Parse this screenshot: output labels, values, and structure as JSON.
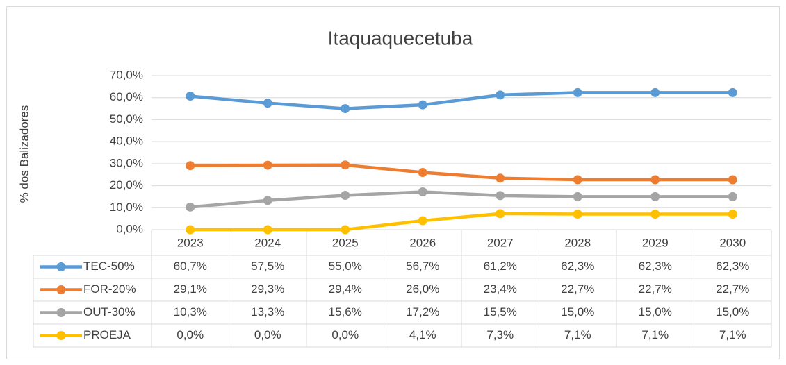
{
  "chart_data": {
    "type": "line",
    "title": "Itaquaquecetuba",
    "y_label": "% dos Balizadores",
    "categories": [
      "2023",
      "2024",
      "2025",
      "2026",
      "2027",
      "2028",
      "2029",
      "2030"
    ],
    "ylim": [
      0,
      70
    ],
    "yticks": [
      {
        "value": 0,
        "label": "0,0%"
      },
      {
        "value": 10,
        "label": "10,0%"
      },
      {
        "value": 20,
        "label": "20,0%"
      },
      {
        "value": 30,
        "label": "30,0%"
      },
      {
        "value": 40,
        "label": "40,0%"
      },
      {
        "value": 50,
        "label": "50,0%"
      },
      {
        "value": 60,
        "label": "60,0%"
      },
      {
        "value": 70,
        "label": "70,0%"
      }
    ],
    "grid": true,
    "series": [
      {
        "name": "TEC-50%",
        "color": "#5b9bd5",
        "values": [
          60.7,
          57.5,
          55.0,
          56.7,
          61.2,
          62.3,
          62.3,
          62.3
        ],
        "value_labels": [
          "60,7%",
          "57,5%",
          "55,0%",
          "56,7%",
          "61,2%",
          "62,3%",
          "62,3%",
          "62,3%"
        ]
      },
      {
        "name": "FOR-20%",
        "color": "#ed7d31",
        "values": [
          29.1,
          29.3,
          29.4,
          26.0,
          23.4,
          22.7,
          22.7,
          22.7
        ],
        "value_labels": [
          "29,1%",
          "29,3%",
          "29,4%",
          "26,0%",
          "23,4%",
          "22,7%",
          "22,7%",
          "22,7%"
        ]
      },
      {
        "name": "OUT-30%",
        "color": "#a5a5a5",
        "values": [
          10.3,
          13.3,
          15.6,
          17.2,
          15.5,
          15.0,
          15.0,
          15.0
        ],
        "value_labels": [
          "10,3%",
          "13,3%",
          "15,6%",
          "17,2%",
          "15,5%",
          "15,0%",
          "15,0%",
          "15,0%"
        ]
      },
      {
        "name": "PROEJA",
        "color": "#ffc000",
        "values": [
          0.0,
          0.0,
          0.0,
          4.1,
          7.3,
          7.1,
          7.1,
          7.1
        ],
        "value_labels": [
          "0,0%",
          "0,0%",
          "0,0%",
          "4,1%",
          "7,3%",
          "7,1%",
          "7,1%",
          "7,1%"
        ]
      }
    ]
  }
}
